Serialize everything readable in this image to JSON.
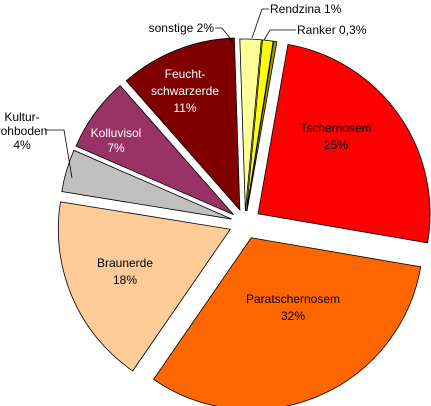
{
  "chart_data": {
    "type": "pie",
    "title": "",
    "legend": "none",
    "slices": [
      {
        "name": "Tschernosem",
        "label": "Tschernosem",
        "pct_label": "25%",
        "value": 25,
        "color": "#ff0000",
        "label_style": "inside"
      },
      {
        "name": "Paratschernosem",
        "label": "Paratschernosem",
        "pct_label": "32%",
        "value": 32,
        "color": "#ff6600",
        "label_style": "inside"
      },
      {
        "name": "Braunerde",
        "label": "Braunerde",
        "pct_label": "18%",
        "value": 18,
        "color": "#ffcc99",
        "label_style": "inside"
      },
      {
        "name": "Kulturrohboden",
        "label": "Kultur-\nrohboden",
        "pct_label": "4%",
        "value": 4,
        "color": "#c0c0c0",
        "label_style": "outside"
      },
      {
        "name": "Kolluvisol",
        "label": "Kolluvisol",
        "pct_label": "7%",
        "value": 7,
        "color": "#993366",
        "label_style": "inside-light"
      },
      {
        "name": "Feuchtschwarzerde",
        "label": "Feucht-\nschwarzerde",
        "pct_label": "11%",
        "value": 11,
        "color": "#800000",
        "label_style": "inside-light"
      },
      {
        "name": "sonstige",
        "label": "sonstige 2%",
        "pct_label": "",
        "value": 2,
        "color": "#ffff99",
        "label_style": "outside"
      },
      {
        "name": "Rendzina",
        "label": "Rendzina 1%",
        "pct_label": "",
        "value": 1,
        "color": "#ffff00",
        "label_style": "outside"
      },
      {
        "name": "Ranker",
        "label": "Ranker 0,3%",
        "pct_label": "",
        "value": 0.3,
        "color": "#999900",
        "label_style": "outside"
      }
    ]
  }
}
